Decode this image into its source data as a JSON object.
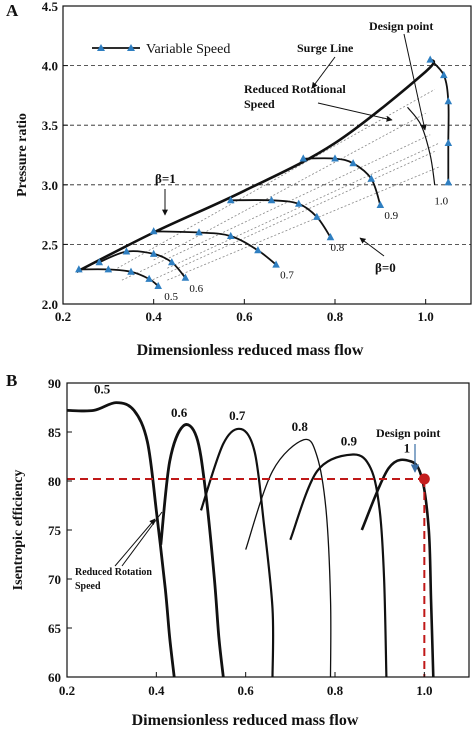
{
  "chart_data": [
    {
      "panel_label": "A",
      "type": "line",
      "xlabel": "Dimensionless reduced mass flow",
      "ylabel": "Pressure ratio",
      "xlim": [
        0.2,
        1.1
      ],
      "ylim": [
        2.0,
        4.5
      ],
      "x_ticks": [
        "0.2",
        "0.4",
        "0.6",
        "0.8",
        "1.0"
      ],
      "y_ticks": [
        "2.0",
        "2.5",
        "3.0",
        "3.5",
        "4.0",
        "4.5"
      ],
      "grid": "dashed at 2.5, 3.0, 3.5, 4.0",
      "legend": {
        "label": "Variable Speed",
        "position": "top-left"
      },
      "speed_lines": [
        {
          "label": "0.5",
          "points": [
            [
              0.235,
              2.29
            ],
            [
              0.3,
              2.29
            ],
            [
              0.35,
              2.27
            ],
            [
              0.39,
              2.21
            ],
            [
              0.41,
              2.15
            ]
          ]
        },
        {
          "label": "0.6",
          "points": [
            [
              0.28,
              2.35
            ],
            [
              0.34,
              2.44
            ],
            [
              0.4,
              2.42
            ],
            [
              0.44,
              2.35
            ],
            [
              0.47,
              2.22
            ]
          ]
        },
        {
          "label": "0.7",
          "points": [
            [
              0.4,
              2.61
            ],
            [
              0.5,
              2.6
            ],
            [
              0.57,
              2.57
            ],
            [
              0.63,
              2.45
            ],
            [
              0.67,
              2.33
            ]
          ]
        },
        {
          "label": "0.8",
          "points": [
            [
              0.57,
              2.87
            ],
            [
              0.66,
              2.87
            ],
            [
              0.72,
              2.84
            ],
            [
              0.76,
              2.73
            ],
            [
              0.79,
              2.56
            ]
          ]
        },
        {
          "label": "0.9",
          "points": [
            [
              0.73,
              3.22
            ],
            [
              0.8,
              3.22
            ],
            [
              0.84,
              3.18
            ],
            [
              0.88,
              3.05
            ],
            [
              0.9,
              2.83
            ]
          ]
        },
        {
          "label": "1.0",
          "points": [
            [
              1.01,
              4.05
            ],
            [
              1.04,
              3.92
            ],
            [
              1.05,
              3.7
            ],
            [
              1.05,
              3.35
            ],
            [
              1.05,
              3.02
            ]
          ]
        }
      ],
      "surge_line": [
        [
          0.23,
          2.27
        ],
        [
          0.4,
          2.6
        ],
        [
          0.6,
          2.95
        ],
        [
          0.8,
          3.35
        ],
        [
          1.0,
          3.95
        ],
        [
          1.01,
          4.05
        ]
      ],
      "design_line": [
        [
          0.96,
          3.65
        ],
        [
          0.99,
          3.5
        ],
        [
          1.01,
          3.25
        ],
        [
          1.02,
          3.0
        ]
      ],
      "beta_lines": [
        [
          [
            0.33,
            2.2
          ],
          [
            1.01,
            3.42
          ]
        ],
        [
          [
            0.39,
            2.19
          ],
          [
            1.02,
            3.28
          ]
        ],
        [
          [
            0.43,
            2.2
          ],
          [
            1.03,
            3.15
          ]
        ],
        [
          [
            0.43,
            2.3
          ],
          [
            1.03,
            3.35
          ]
        ],
        [
          [
            0.4,
            2.37
          ],
          [
            1.0,
            3.6
          ]
        ],
        [
          [
            0.32,
            2.3
          ],
          [
            1.02,
            3.8
          ]
        ]
      ],
      "annotations": [
        {
          "text": "Design point"
        },
        {
          "text": "Surge Line"
        },
        {
          "text": "Reduced Rotational"
        },
        {
          "text": "Speed"
        },
        {
          "text": "β=1"
        },
        {
          "text": "β=0"
        }
      ]
    },
    {
      "panel_label": "B",
      "type": "line",
      "xlabel": "Dimensionless reduced mass flow",
      "ylabel": "Isentropic efficiency",
      "xlim": [
        0.2,
        1.1
      ],
      "ylim": [
        60,
        90
      ],
      "x_ticks": [
        "0.2",
        "0.4",
        "0.6",
        "0.8",
        "1.0"
      ],
      "y_ticks": [
        "60",
        "65",
        "70",
        "75",
        "80",
        "85",
        "90"
      ],
      "series": [
        {
          "name": "0.5",
          "points": [
            [
              0.2,
              87.2
            ],
            [
              0.26,
              87.2
            ],
            [
              0.31,
              88.0
            ],
            [
              0.35,
              87.2
            ],
            [
              0.38,
              84.0
            ],
            [
              0.4,
              77.0
            ],
            [
              0.42,
              69.0
            ],
            [
              0.43,
              64.0
            ],
            [
              0.44,
              60.0
            ]
          ]
        },
        {
          "name": "0.6",
          "points": [
            [
              0.41,
              73.5
            ],
            [
              0.43,
              82.0
            ],
            [
              0.46,
              85.6
            ],
            [
              0.49,
              84.5
            ],
            [
              0.51,
              79.0
            ],
            [
              0.53,
              70.0
            ],
            [
              0.54,
              64.0
            ],
            [
              0.55,
              60.0
            ]
          ]
        },
        {
          "name": "0.7",
          "points": [
            [
              0.5,
              77.0
            ],
            [
              0.55,
              83.8
            ],
            [
              0.59,
              85.3
            ],
            [
              0.62,
              83.0
            ],
            [
              0.64,
              76.0
            ],
            [
              0.66,
              67.0
            ],
            [
              0.66,
              60.0
            ]
          ]
        },
        {
          "name": "0.8",
          "points": [
            [
              0.6,
              73.0
            ],
            [
              0.66,
              81.0
            ],
            [
              0.73,
              84.2
            ],
            [
              0.76,
              82.5
            ],
            [
              0.78,
              77.0
            ],
            [
              0.79,
              68.0
            ],
            [
              0.79,
              60.0
            ]
          ]
        },
        {
          "name": "0.9",
          "points": [
            [
              0.7,
              74.0
            ],
            [
              0.76,
              81.0
            ],
            [
              0.84,
              82.7
            ],
            [
              0.88,
              81.3
            ],
            [
              0.9,
              77.0
            ],
            [
              0.91,
              70.0
            ],
            [
              0.915,
              60.0
            ]
          ]
        },
        {
          "name": "1",
          "points": [
            [
              0.86,
              75.0
            ],
            [
              0.92,
              81.3
            ],
            [
              0.97,
              82.0
            ],
            [
              0.995,
              80.2
            ],
            [
              1.01,
              75.0
            ],
            [
              1.015,
              68.0
            ],
            [
              1.02,
              60.0
            ]
          ]
        }
      ],
      "design_point": {
        "label": "Design point",
        "x": 1.0,
        "y": 80.2
      },
      "annotations": [
        {
          "text": "Reduced Rotation"
        },
        {
          "text": "Speed"
        }
      ]
    }
  ]
}
